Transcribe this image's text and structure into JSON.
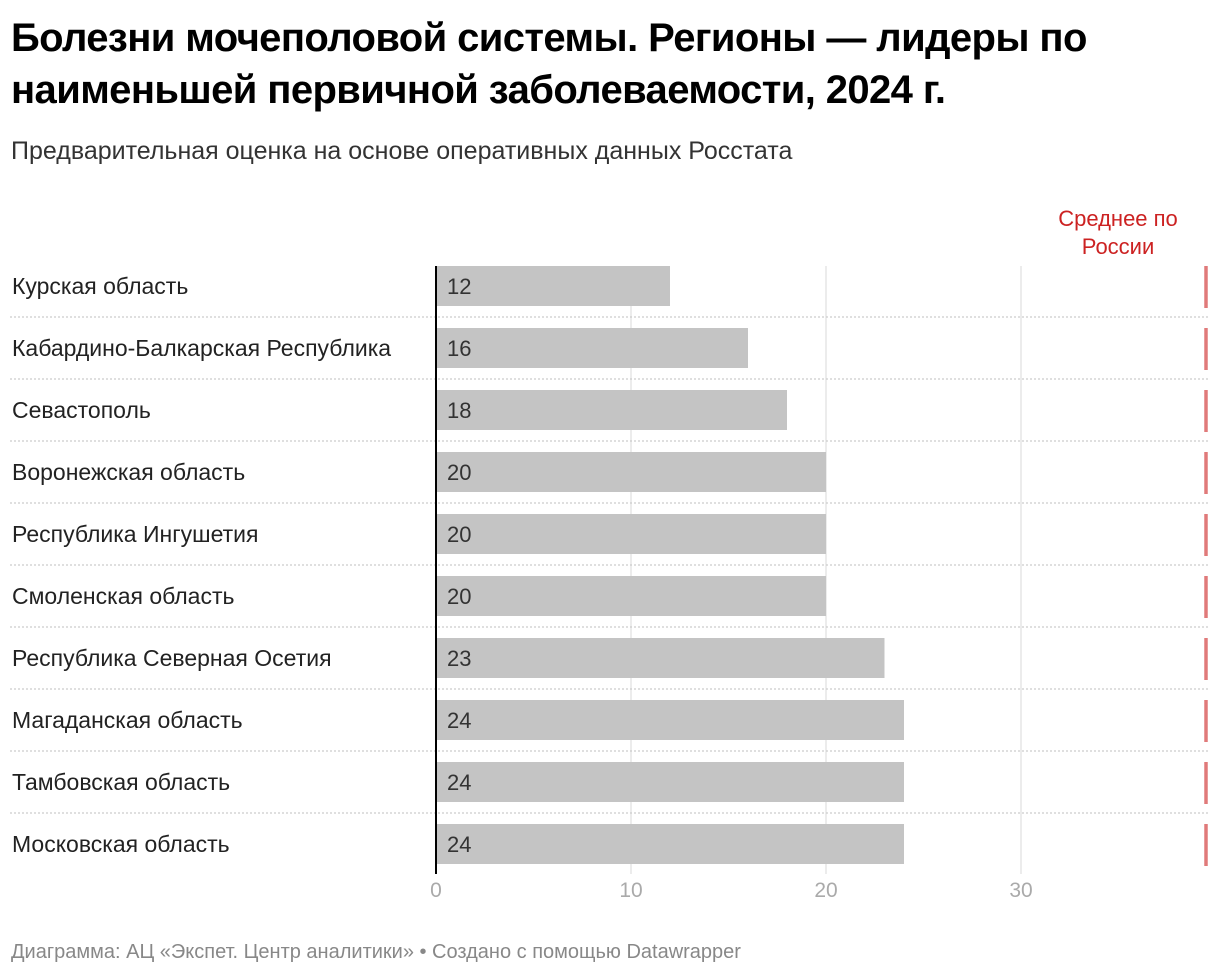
{
  "title": "Болезни мочеполовой системы. Регионы — лидеры по наименьшей первичной заболеваемости, 2024 г.",
  "subtitle": "Предварительная оценка на основе оперативных данных Росстата",
  "footer": "Диаграмма: АЦ «Экспет. Центр аналитики» • Создано с помощью Datawrapper",
  "chart_data": {
    "type": "bar",
    "orientation": "horizontal",
    "categories": [
      "Курская область",
      "Кабардино-Балкарская Республика",
      "Севастополь",
      "Воронежская область",
      "Республика Ингушетия",
      "Смоленская область",
      "Республика Северная Осетия",
      "Магаданская область",
      "Тамбовская область",
      "Московская область"
    ],
    "values": [
      12,
      16,
      18,
      20,
      20,
      20,
      23,
      24,
      24,
      24
    ],
    "xlim": [
      0,
      39
    ],
    "xticks": [
      0,
      10,
      20,
      30
    ],
    "grid": true,
    "reference_line": {
      "label_lines": [
        "Среднее по",
        "России"
      ],
      "color": "#e07a7a",
      "label_color": "#cc2222"
    },
    "colors": {
      "bar": "#c4c4c4",
      "grid": "#e6e6e6",
      "axis": "#000000",
      "separator": "#cccccc"
    }
  }
}
